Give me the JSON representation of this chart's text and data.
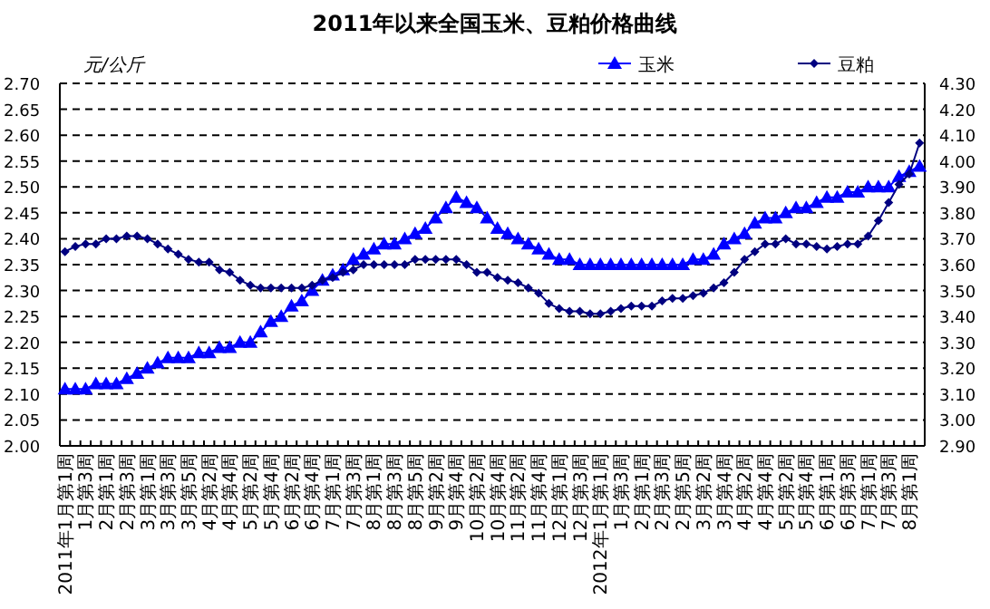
{
  "chart_data": {
    "type": "line",
    "title": "2011年以来全国玉米、豆粕价格曲线",
    "ylabel": "元/公斤",
    "categories": [
      "2011年1月第1周",
      null,
      "1月第3周",
      null,
      "2月第1周",
      null,
      "2月第3周",
      null,
      "3月第1周",
      null,
      "3月第3周",
      null,
      "3月第5周",
      null,
      "4月第2周",
      null,
      "4月第4周",
      null,
      "5月第2周",
      null,
      "5月第4周",
      null,
      "6月第2周",
      null,
      "6月第4周",
      null,
      "7月第1周",
      null,
      "7月第3周",
      null,
      "8月第1周",
      null,
      "8月第3周",
      null,
      "8月第5周",
      null,
      "9月第2周",
      null,
      "9月第4周",
      null,
      "10月第2周",
      null,
      "10月第4周",
      null,
      "11月第2周",
      null,
      "11月第4周",
      null,
      "12月第1周",
      null,
      "12月第3周",
      null,
      "2012年1月第1周",
      null,
      "1月第3周",
      null,
      "2月第1周",
      null,
      "2月第3周",
      null,
      "2月第5周",
      null,
      "3月第2周",
      null,
      "3月第4周",
      null,
      "4月第2周",
      null,
      "4月第4周",
      null,
      "5月第2周",
      null,
      "5月第4周",
      null,
      "6月第1周",
      null,
      "6月第3周",
      null,
      "7月第1周",
      null,
      "7月第3周",
      null,
      "8月第1周",
      null
    ],
    "series": [
      {
        "name": "玉米",
        "color": "#0000ff",
        "marker": "triangle",
        "values": [
          2.11,
          2.11,
          2.11,
          2.12,
          2.12,
          2.12,
          2.13,
          2.14,
          2.15,
          2.16,
          2.17,
          2.17,
          2.17,
          2.18,
          2.18,
          2.19,
          2.19,
          2.2,
          2.2,
          2.22,
          2.24,
          2.25,
          2.27,
          2.28,
          2.3,
          2.32,
          2.33,
          2.34,
          2.36,
          2.37,
          2.38,
          2.39,
          2.39,
          2.4,
          2.41,
          2.42,
          2.44,
          2.46,
          2.48,
          2.47,
          2.46,
          2.44,
          2.42,
          2.41,
          2.4,
          2.39,
          2.38,
          2.37,
          2.36,
          2.36,
          2.35,
          2.35,
          2.35,
          2.35,
          2.35,
          2.35,
          2.35,
          2.35,
          2.35,
          2.35,
          2.35,
          2.36,
          2.36,
          2.37,
          2.39,
          2.4,
          2.41,
          2.43,
          2.44,
          2.44,
          2.45,
          2.46,
          2.46,
          2.47,
          2.48,
          2.48,
          2.49,
          2.49,
          2.5,
          2.5,
          2.5,
          2.52,
          2.53,
          2.54
        ]
      },
      {
        "name": "豆粕",
        "color": "#000080",
        "marker": "diamond",
        "axis": "y2",
        "values": [
          3.65,
          3.67,
          3.68,
          3.68,
          3.7,
          3.7,
          3.71,
          3.71,
          3.7,
          3.68,
          3.66,
          3.64,
          3.62,
          3.61,
          3.61,
          3.58,
          3.57,
          3.54,
          3.52,
          3.51,
          3.51,
          3.51,
          3.51,
          3.51,
          3.52,
          3.54,
          3.55,
          3.57,
          3.58,
          3.6,
          3.6,
          3.6,
          3.6,
          3.6,
          3.62,
          3.62,
          3.62,
          3.62,
          3.62,
          3.6,
          3.57,
          3.57,
          3.55,
          3.54,
          3.53,
          3.51,
          3.49,
          3.45,
          3.43,
          3.42,
          3.42,
          3.41,
          3.41,
          3.42,
          3.43,
          3.44,
          3.44,
          3.44,
          3.46,
          3.47,
          3.47,
          3.48,
          3.49,
          3.51,
          3.53,
          3.57,
          3.62,
          3.65,
          3.68,
          3.68,
          3.7,
          3.68,
          3.68,
          3.67,
          3.66,
          3.67,
          3.68,
          3.68,
          3.71,
          3.77,
          3.84,
          3.91,
          3.95,
          4.07
        ]
      }
    ],
    "ylim": [
      2.0,
      2.7
    ],
    "yticks": [
      {
        "value": 2.0,
        "label": "2.00"
      },
      {
        "value": 2.05,
        "label": "2.05"
      },
      {
        "value": 2.1,
        "label": "2.10"
      },
      {
        "value": 2.15,
        "label": "2.15"
      },
      {
        "value": 2.2,
        "label": "2.20"
      },
      {
        "value": 2.25,
        "label": "2.25"
      },
      {
        "value": 2.3,
        "label": "2.30"
      },
      {
        "value": 2.35,
        "label": "2.35"
      },
      {
        "value": 2.4,
        "label": "2.40"
      },
      {
        "value": 2.45,
        "label": "2.45"
      },
      {
        "value": 2.5,
        "label": "2.50"
      },
      {
        "value": 2.55,
        "label": "2.55"
      },
      {
        "value": 2.6,
        "label": "2.60"
      },
      {
        "value": 2.65,
        "label": "2.65"
      },
      {
        "value": 2.7,
        "label": "2.70"
      }
    ],
    "y2lim": [
      2.9,
      4.3
    ],
    "y2ticks": [
      {
        "value": 2.9,
        "label": "2.90"
      },
      {
        "value": 3.0,
        "label": "3.00"
      },
      {
        "value": 3.1,
        "label": "3.10"
      },
      {
        "value": 3.2,
        "label": "3.20"
      },
      {
        "value": 3.3,
        "label": "3.30"
      },
      {
        "value": 3.4,
        "label": "3.40"
      },
      {
        "value": 3.5,
        "label": "3.50"
      },
      {
        "value": 3.6,
        "label": "3.60"
      },
      {
        "value": 3.7,
        "label": "3.70"
      },
      {
        "value": 3.8,
        "label": "3.80"
      },
      {
        "value": 3.9,
        "label": "3.90"
      },
      {
        "value": 4.0,
        "label": "4.00"
      },
      {
        "value": 4.1,
        "label": "4.10"
      },
      {
        "value": 4.2,
        "label": "4.20"
      },
      {
        "value": 4.3,
        "label": "4.30"
      }
    ],
    "grid": "y",
    "legend": "top right",
    "line_style": "solid"
  }
}
